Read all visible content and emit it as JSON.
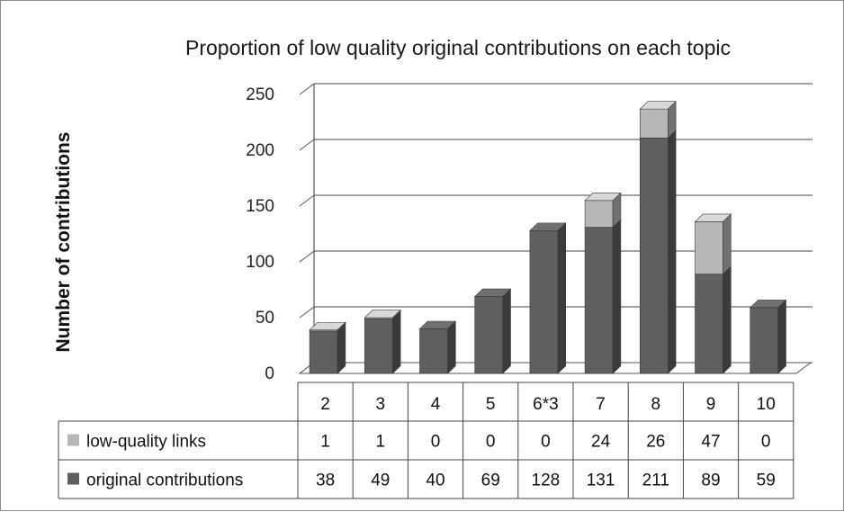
{
  "chart_data": {
    "type": "bar",
    "stacked": true,
    "three_d": true,
    "title": "Proportion of low quality original contributions on each topic",
    "ylabel": "Number of contributions",
    "xlabel": "",
    "ylim": [
      0,
      250
    ],
    "yticks": [
      0,
      50,
      100,
      150,
      200,
      250
    ],
    "ytick_labels": [
      "0",
      "50",
      "100",
      "150",
      "200",
      "250"
    ],
    "grid": true,
    "legend_placement": "data-table-left",
    "categories": [
      "2",
      "3",
      "4",
      "5",
      "6*3",
      "7",
      "8",
      "9",
      "10"
    ],
    "series": [
      {
        "name": "original contributions",
        "color": "#5f5f5f",
        "values": [
          38,
          49,
          40,
          69,
          128,
          131,
          211,
          89,
          59
        ]
      },
      {
        "name": "low-quality links",
        "color": "#b7b7b7",
        "values": [
          1,
          1,
          0,
          0,
          0,
          24,
          26,
          47,
          0
        ]
      }
    ]
  }
}
